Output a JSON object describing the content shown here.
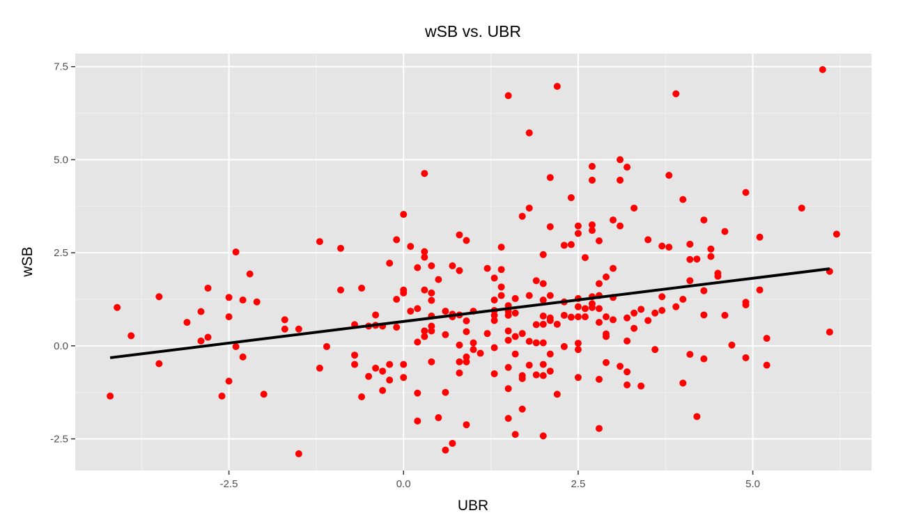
{
  "chart_data": {
    "type": "scatter",
    "title": "wSB vs. UBR",
    "xlabel": "UBR",
    "ylabel": "wSB",
    "xlim": [
      -4.7,
      6.7
    ],
    "ylim": [
      -3.35,
      7.85
    ],
    "x_ticks": [
      -2.5,
      0.0,
      2.5,
      5.0
    ],
    "x_tick_labels": [
      "-2.5",
      "0.0",
      "2.5",
      "5.0"
    ],
    "y_ticks": [
      -2.5,
      0.0,
      2.5,
      5.0,
      7.5
    ],
    "y_tick_labels": [
      "-2.5",
      "0.0",
      "2.5",
      "5.0",
      "7.5"
    ],
    "grid": true,
    "background": "#e5e5e5",
    "point_color": "#ff0000",
    "line_color": "#000000",
    "trend_line": {
      "x": [
        -4.2,
        6.1
      ],
      "y": [
        -0.32,
        2.07
      ]
    },
    "points": [
      [
        -4.1,
        1.03
      ],
      [
        -4.2,
        -1.35
      ],
      [
        -3.9,
        0.27
      ],
      [
        -3.5,
        1.32
      ],
      [
        -3.5,
        -0.48
      ],
      [
        -3.1,
        0.63
      ],
      [
        -2.9,
        0.92
      ],
      [
        -2.9,
        0.13
      ],
      [
        -2.8,
        1.55
      ],
      [
        -2.8,
        0.23
      ],
      [
        -2.6,
        -1.35
      ],
      [
        -2.5,
        1.3
      ],
      [
        -2.5,
        0.78
      ],
      [
        -2.5,
        -0.95
      ],
      [
        -2.4,
        -0.02
      ],
      [
        -2.4,
        2.52
      ],
      [
        -2.3,
        1.23
      ],
      [
        -2.3,
        -0.3
      ],
      [
        -2.2,
        1.93
      ],
      [
        -2.1,
        1.18
      ],
      [
        -2.0,
        -1.3
      ],
      [
        -1.7,
        0.7
      ],
      [
        -1.7,
        0.45
      ],
      [
        -1.5,
        0.45
      ],
      [
        -1.5,
        -2.9
      ],
      [
        -1.2,
        2.8
      ],
      [
        -1.2,
        -0.6
      ],
      [
        -1.1,
        -0.02
      ],
      [
        -0.9,
        2.62
      ],
      [
        -0.9,
        1.5
      ],
      [
        -0.7,
        0.57
      ],
      [
        -0.7,
        -0.25
      ],
      [
        -0.7,
        -0.5
      ],
      [
        -0.6,
        1.55
      ],
      [
        -0.6,
        -1.37
      ],
      [
        -0.5,
        0.53
      ],
      [
        -0.5,
        -0.82
      ],
      [
        -0.4,
        0.83
      ],
      [
        -0.4,
        0.55
      ],
      [
        -0.4,
        -0.6
      ],
      [
        -0.3,
        0.53
      ],
      [
        -0.3,
        -0.68
      ],
      [
        -0.3,
        -1.2
      ],
      [
        -0.2,
        2.22
      ],
      [
        -0.2,
        -0.5
      ],
      [
        -0.2,
        -0.92
      ],
      [
        -0.1,
        2.85
      ],
      [
        -0.1,
        1.25
      ],
      [
        -0.1,
        0.5
      ],
      [
        0.0,
        3.53
      ],
      [
        0.0,
        1.5
      ],
      [
        0.0,
        1.42
      ],
      [
        0.0,
        -0.5
      ],
      [
        0.0,
        -0.85
      ],
      [
        0.1,
        2.67
      ],
      [
        0.1,
        0.93
      ],
      [
        0.2,
        2.1
      ],
      [
        0.2,
        1.0
      ],
      [
        0.2,
        0.1
      ],
      [
        0.2,
        -1.27
      ],
      [
        0.2,
        -2.02
      ],
      [
        0.3,
        4.63
      ],
      [
        0.3,
        2.53
      ],
      [
        0.3,
        2.38
      ],
      [
        0.3,
        1.5
      ],
      [
        0.3,
        0.4
      ],
      [
        0.3,
        0.25
      ],
      [
        0.4,
        2.15
      ],
      [
        0.4,
        1.42
      ],
      [
        0.4,
        1.22
      ],
      [
        0.4,
        0.8
      ],
      [
        0.4,
        0.53
      ],
      [
        0.4,
        0.4
      ],
      [
        0.4,
        -0.43
      ],
      [
        0.5,
        1.78
      ],
      [
        0.5,
        -1.93
      ],
      [
        0.6,
        0.93
      ],
      [
        0.6,
        0.3
      ],
      [
        0.6,
        -1.25
      ],
      [
        0.6,
        -2.8
      ],
      [
        0.7,
        2.15
      ],
      [
        0.7,
        0.85
      ],
      [
        0.7,
        0.78
      ],
      [
        0.7,
        -2.62
      ],
      [
        0.8,
        2.98
      ],
      [
        0.8,
        2.02
      ],
      [
        0.8,
        0.83
      ],
      [
        0.8,
        0.02
      ],
      [
        0.8,
        -0.43
      ],
      [
        0.8,
        -0.73
      ],
      [
        0.9,
        2.83
      ],
      [
        0.9,
        0.67
      ],
      [
        0.9,
        0.38
      ],
      [
        0.9,
        -0.3
      ],
      [
        0.9,
        -0.43
      ],
      [
        0.9,
        -2.12
      ],
      [
        1.0,
        0.93
      ],
      [
        1.0,
        0.08
      ],
      [
        1.0,
        -0.1
      ],
      [
        1.1,
        -0.2
      ],
      [
        1.2,
        2.08
      ],
      [
        1.2,
        0.33
      ],
      [
        1.3,
        1.82
      ],
      [
        1.3,
        1.23
      ],
      [
        1.3,
        0.95
      ],
      [
        1.3,
        0.82
      ],
      [
        1.3,
        0.68
      ],
      [
        1.3,
        -0.05
      ],
      [
        1.3,
        -0.75
      ],
      [
        1.4,
        2.65
      ],
      [
        1.4,
        2.05
      ],
      [
        1.4,
        1.58
      ],
      [
        1.4,
        1.35
      ],
      [
        1.5,
        6.72
      ],
      [
        1.5,
        1.08
      ],
      [
        1.5,
        0.93
      ],
      [
        1.5,
        0.82
      ],
      [
        1.5,
        0.4
      ],
      [
        1.5,
        0.15
      ],
      [
        1.5,
        -0.58
      ],
      [
        1.5,
        -1.15
      ],
      [
        1.5,
        -1.95
      ],
      [
        1.6,
        1.27
      ],
      [
        1.6,
        0.88
      ],
      [
        1.6,
        0.25
      ],
      [
        1.6,
        -0.22
      ],
      [
        1.6,
        -2.38
      ],
      [
        1.7,
        3.48
      ],
      [
        1.7,
        0.33
      ],
      [
        1.7,
        -0.8
      ],
      [
        1.7,
        -0.88
      ],
      [
        1.7,
        -1.7
      ],
      [
        1.8,
        5.72
      ],
      [
        1.8,
        3.7
      ],
      [
        1.8,
        1.35
      ],
      [
        1.8,
        0.12
      ],
      [
        1.8,
        -0.52
      ],
      [
        1.9,
        1.75
      ],
      [
        1.9,
        0.57
      ],
      [
        1.9,
        0.08
      ],
      [
        1.9,
        -0.78
      ],
      [
        2.0,
        2.45
      ],
      [
        2.0,
        1.67
      ],
      [
        2.0,
        1.23
      ],
      [
        2.0,
        0.8
      ],
      [
        2.0,
        0.58
      ],
      [
        2.0,
        0.08
      ],
      [
        2.0,
        -0.5
      ],
      [
        2.0,
        -0.8
      ],
      [
        2.0,
        -2.42
      ],
      [
        2.1,
        4.52
      ],
      [
        2.1,
        3.2
      ],
      [
        2.1,
        1.35
      ],
      [
        2.1,
        0.75
      ],
      [
        2.1,
        0.68
      ],
      [
        2.1,
        -0.22
      ],
      [
        2.1,
        -0.68
      ],
      [
        2.2,
        6.97
      ],
      [
        2.2,
        0.58
      ],
      [
        2.2,
        -1.3
      ],
      [
        2.3,
        2.7
      ],
      [
        2.3,
        1.18
      ],
      [
        2.3,
        0.82
      ],
      [
        2.3,
        -0.02
      ],
      [
        2.4,
        3.98
      ],
      [
        2.4,
        2.72
      ],
      [
        2.4,
        0.77
      ],
      [
        2.5,
        3.22
      ],
      [
        2.5,
        3.02
      ],
      [
        2.5,
        1.27
      ],
      [
        2.5,
        1.05
      ],
      [
        2.5,
        0.78
      ],
      [
        2.5,
        0.07
      ],
      [
        2.5,
        -0.1
      ],
      [
        2.5,
        -0.85
      ],
      [
        2.6,
        2.37
      ],
      [
        2.6,
        1.0
      ],
      [
        2.6,
        0.78
      ],
      [
        2.7,
        4.82
      ],
      [
        2.7,
        4.45
      ],
      [
        2.7,
        3.25
      ],
      [
        2.7,
        3.1
      ],
      [
        2.7,
        1.32
      ],
      [
        2.7,
        1.13
      ],
      [
        2.7,
        1.03
      ],
      [
        2.8,
        2.82
      ],
      [
        2.8,
        1.67
      ],
      [
        2.8,
        1.35
      ],
      [
        2.8,
        1.0
      ],
      [
        2.8,
        0.63
      ],
      [
        2.8,
        -0.9
      ],
      [
        2.8,
        -2.22
      ],
      [
        2.9,
        1.85
      ],
      [
        2.9,
        0.78
      ],
      [
        2.9,
        0.32
      ],
      [
        2.9,
        0.25
      ],
      [
        2.9,
        -0.45
      ],
      [
        3.0,
        3.38
      ],
      [
        3.0,
        2.08
      ],
      [
        3.0,
        1.3
      ],
      [
        3.0,
        0.7
      ],
      [
        3.1,
        5.0
      ],
      [
        3.1,
        4.45
      ],
      [
        3.1,
        3.22
      ],
      [
        3.1,
        -0.55
      ],
      [
        3.2,
        4.8
      ],
      [
        3.2,
        0.75
      ],
      [
        3.2,
        0.13
      ],
      [
        3.2,
        -0.7
      ],
      [
        3.2,
        -1.05
      ],
      [
        3.3,
        3.7
      ],
      [
        3.3,
        0.88
      ],
      [
        3.3,
        0.47
      ],
      [
        3.4,
        0.98
      ],
      [
        3.4,
        -1.08
      ],
      [
        3.5,
        2.85
      ],
      [
        3.5,
        0.68
      ],
      [
        3.6,
        0.88
      ],
      [
        3.6,
        -0.1
      ],
      [
        3.7,
        2.68
      ],
      [
        3.7,
        1.32
      ],
      [
        3.7,
        0.95
      ],
      [
        3.8,
        4.58
      ],
      [
        3.8,
        2.65
      ],
      [
        3.9,
        6.77
      ],
      [
        3.9,
        1.05
      ],
      [
        4.0,
        3.93
      ],
      [
        4.0,
        1.25
      ],
      [
        4.0,
        -1.0
      ],
      [
        4.1,
        2.73
      ],
      [
        4.1,
        2.32
      ],
      [
        4.1,
        1.75
      ],
      [
        4.1,
        -0.23
      ],
      [
        4.2,
        2.33
      ],
      [
        4.2,
        -1.9
      ],
      [
        4.3,
        3.38
      ],
      [
        4.3,
        1.48
      ],
      [
        4.3,
        0.83
      ],
      [
        4.3,
        -0.35
      ],
      [
        4.4,
        2.6
      ],
      [
        4.4,
        2.4
      ],
      [
        4.5,
        1.95
      ],
      [
        4.5,
        1.87
      ],
      [
        4.6,
        3.07
      ],
      [
        4.6,
        0.82
      ],
      [
        4.7,
        0.02
      ],
      [
        4.9,
        4.12
      ],
      [
        4.9,
        1.17
      ],
      [
        4.9,
        1.1
      ],
      [
        4.9,
        -0.32
      ],
      [
        5.1,
        2.92
      ],
      [
        5.1,
        1.5
      ],
      [
        5.2,
        0.2
      ],
      [
        5.2,
        -0.52
      ],
      [
        5.7,
        3.7
      ],
      [
        6.0,
        7.42
      ],
      [
        6.1,
        2.0
      ],
      [
        6.1,
        0.37
      ],
      [
        6.2,
        3.0
      ]
    ]
  }
}
